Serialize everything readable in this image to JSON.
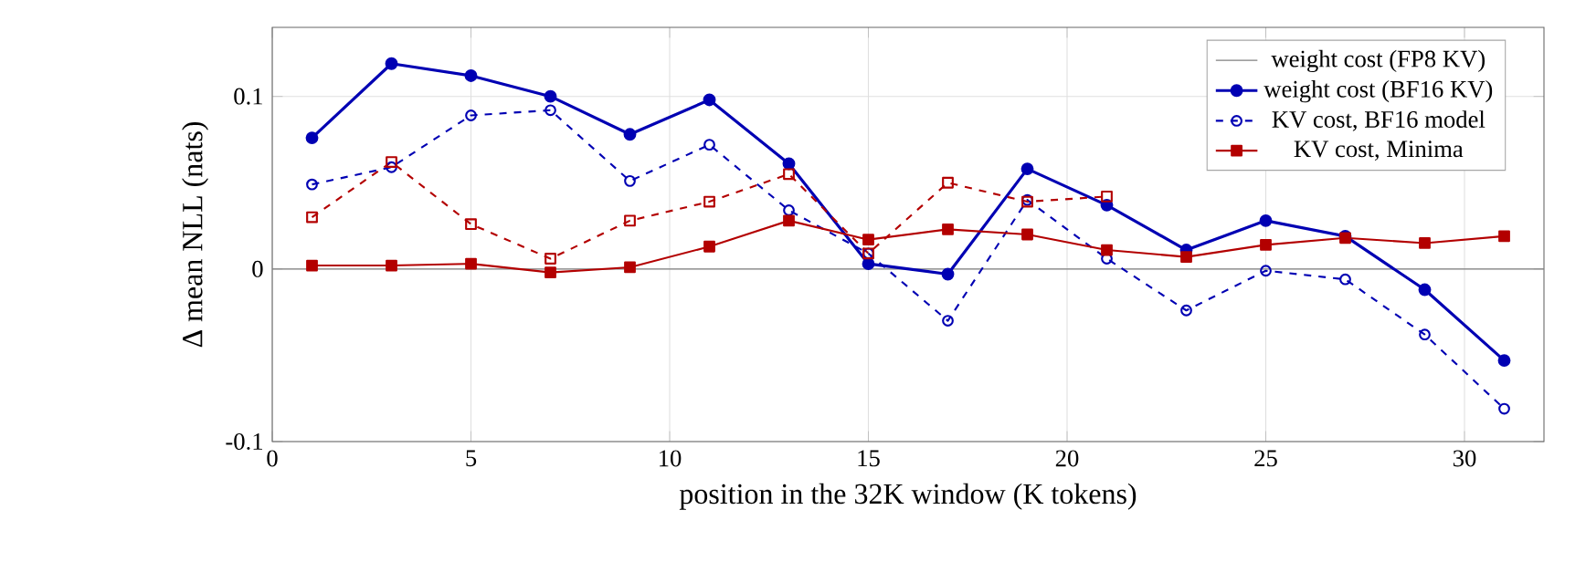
{
  "chart_data": {
    "type": "line",
    "xlabel": "position in the 32K window (K tokens)",
    "ylabel": "Δ mean NLL (nats)",
    "xlim": [
      0,
      32
    ],
    "ylim": [
      -0.1,
      0.14
    ],
    "xticks": [
      0,
      5,
      10,
      15,
      20,
      25,
      30
    ],
    "yticks": [
      -0.1,
      0,
      0.1
    ],
    "grid": true,
    "legend": "top right",
    "x": [
      1,
      3,
      5,
      7,
      9,
      11,
      13,
      15,
      17,
      19,
      21,
      23,
      25,
      27,
      29,
      31
    ],
    "series": [
      {
        "name": "weight cost (FP8 KV)",
        "color": "#808080",
        "x": [
          0,
          32
        ],
        "values": [
          0,
          0
        ],
        "marker": "none",
        "line_style": "solid"
      },
      {
        "name": "weight cost (BF16 KV)",
        "color": "#0000b3",
        "marker": "circle",
        "line_style": "solid",
        "values": [
          0.076,
          0.119,
          0.112,
          0.1,
          0.078,
          0.098,
          0.061,
          0.003,
          -0.003,
          0.058,
          0.037,
          0.011,
          0.028,
          0.019,
          -0.012,
          -0.053
        ]
      },
      {
        "name": "KV cost, BF16 model",
        "color": "#0000b3",
        "marker": "circle",
        "line_style": "dashed",
        "values": [
          0.049,
          0.059,
          0.089,
          0.092,
          0.051,
          0.072,
          0.034,
          0.009,
          -0.03,
          0.04,
          0.006,
          -0.024,
          -0.001,
          -0.006,
          -0.038,
          -0.081
        ]
      },
      {
        "name": "KV cost, Minima",
        "color": "#b30000",
        "marker": "square",
        "line_style": "solid",
        "values": [
          0.002,
          0.002,
          0.003,
          -0.002,
          0.001,
          0.013,
          0.028,
          0.017,
          0.023,
          0.02,
          0.011,
          0.007,
          0.014,
          0.018,
          0.015,
          0.019
        ]
      },
      {
        "color": "#b30000",
        "marker": "square",
        "line_style": "dashed",
        "values": [
          0.03,
          0.062,
          0.026,
          0.006,
          0.028,
          0.039,
          0.055,
          0.009,
          0.05,
          0.039,
          0.042,
          null,
          null,
          null,
          null,
          null
        ]
      }
    ]
  }
}
